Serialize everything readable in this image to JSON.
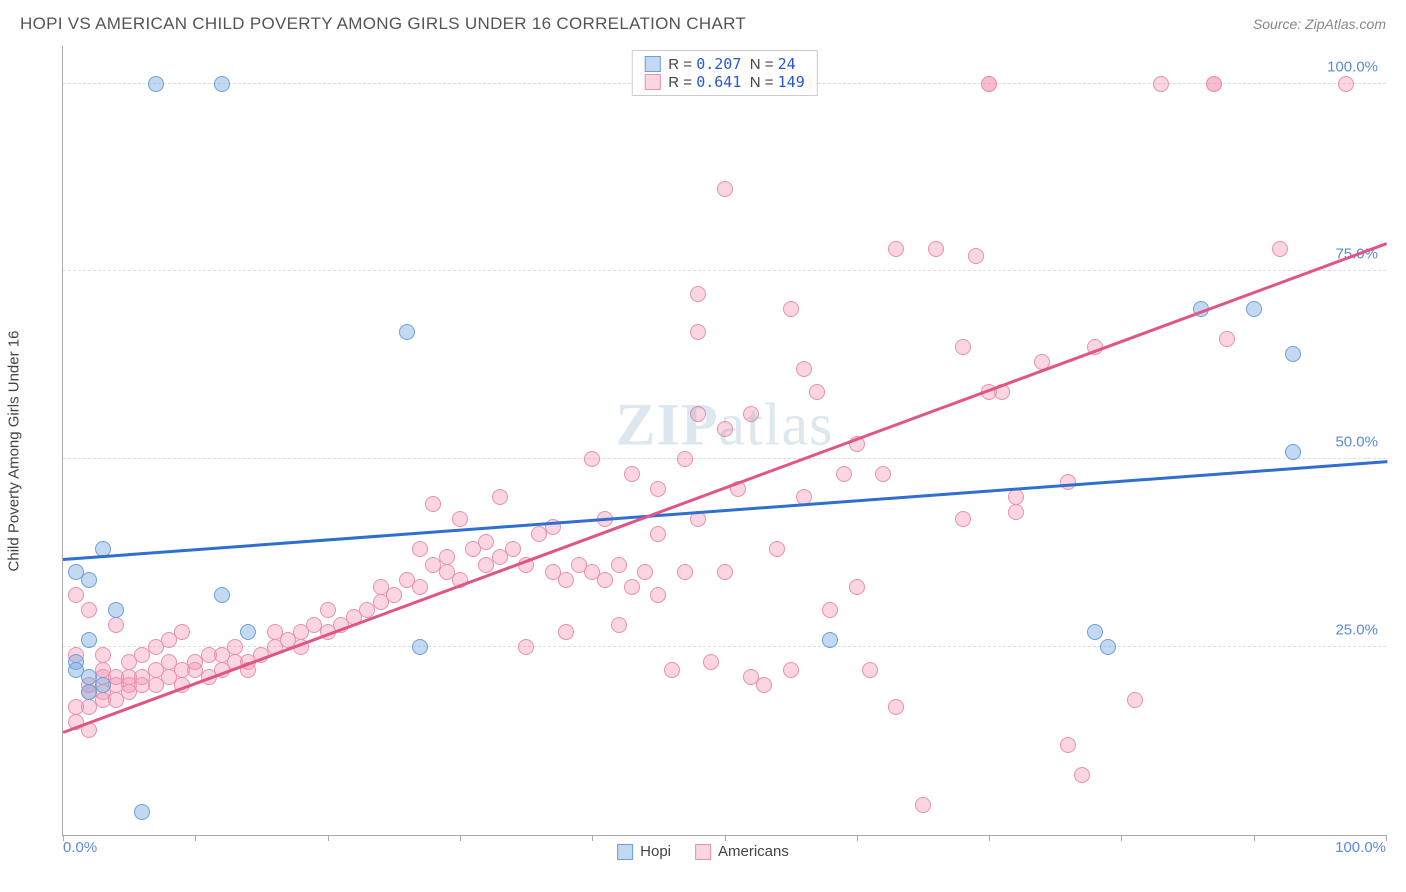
{
  "title": "HOPI VS AMERICAN CHILD POVERTY AMONG GIRLS UNDER 16 CORRELATION CHART",
  "source": "Source: ZipAtlas.com",
  "ylabel": "Child Poverty Among Girls Under 16",
  "watermark": {
    "bold": "ZIP",
    "rest": "atlas"
  },
  "colors": {
    "hopi_fill": "rgba(120,170,225,0.45)",
    "hopi_stroke": "#6aa0d8",
    "hopi_line": "#2e6fd0",
    "amer_fill": "rgba(245,150,180,0.40)",
    "amer_stroke": "#e890ad",
    "amer_line": "#e05585",
    "value_text": "#2558d6",
    "tick_blue": "#5a8bd8",
    "grid": "#dddddd",
    "axis": "#aaaaaa"
  },
  "axes": {
    "xlim": [
      0,
      100
    ],
    "ylim": [
      0,
      105
    ],
    "xticks_major": [
      0,
      10,
      20,
      30,
      40,
      50,
      60,
      70,
      80,
      90,
      100
    ],
    "xticks_labels": [
      {
        "pos": 0,
        "text": "0.0%"
      },
      {
        "pos": 100,
        "text": "100.0%"
      }
    ],
    "yticks": [
      {
        "pos": 25,
        "text": "25.0%"
      },
      {
        "pos": 50,
        "text": "50.0%"
      },
      {
        "pos": 75,
        "text": "75.0%"
      },
      {
        "pos": 100,
        "text": "100.0%"
      }
    ]
  },
  "legend_top": [
    {
      "swatch": "hopi",
      "r_label": "R =",
      "r": "0.207",
      "n_label": "N =",
      "n": "24"
    },
    {
      "swatch": "amer",
      "r_label": "R =",
      "r": "0.641",
      "n_label": "N =",
      "n": "149"
    }
  ],
  "legend_bottom": [
    {
      "swatch": "hopi",
      "label": "Hopi"
    },
    {
      "swatch": "amer",
      "label": "Americans"
    }
  ],
  "trend_lines": {
    "hopi": {
      "x1": 0,
      "y1": 37,
      "x2": 100,
      "y2": 50
    },
    "amer": {
      "x1": 0,
      "y1": 14,
      "x2": 100,
      "y2": 79
    }
  },
  "point_radius": 8,
  "series": {
    "hopi": [
      [
        7,
        100
      ],
      [
        12,
        100
      ],
      [
        1,
        35
      ],
      [
        2,
        34
      ],
      [
        2,
        26
      ],
      [
        1,
        23
      ],
      [
        1,
        22
      ],
      [
        2,
        21
      ],
      [
        3,
        20
      ],
      [
        12,
        32
      ],
      [
        14,
        27
      ],
      [
        26,
        67
      ],
      [
        27,
        25
      ],
      [
        58,
        26
      ],
      [
        78,
        27
      ],
      [
        79,
        25
      ],
      [
        86,
        70
      ],
      [
        90,
        70
      ],
      [
        93,
        51
      ],
      [
        93,
        64
      ],
      [
        6,
        3
      ],
      [
        3,
        38
      ],
      [
        4,
        30
      ],
      [
        2,
        19
      ]
    ],
    "amer": [
      [
        56,
        100
      ],
      [
        70,
        100
      ],
      [
        70,
        100
      ],
      [
        83,
        100
      ],
      [
        87,
        100
      ],
      [
        87,
        100
      ],
      [
        97,
        100
      ],
      [
        50,
        86
      ],
      [
        48,
        72
      ],
      [
        48,
        67
      ],
      [
        55,
        70
      ],
      [
        56,
        62
      ],
      [
        57,
        59
      ],
      [
        63,
        78
      ],
      [
        66,
        78
      ],
      [
        68,
        42
      ],
      [
        68,
        65
      ],
      [
        69,
        77
      ],
      [
        70,
        59
      ],
      [
        71,
        59
      ],
      [
        72,
        43
      ],
      [
        72,
        45
      ],
      [
        74,
        63
      ],
      [
        76,
        47
      ],
      [
        78,
        65
      ],
      [
        88,
        66
      ],
      [
        92,
        78
      ],
      [
        1,
        32
      ],
      [
        1,
        24
      ],
      [
        2,
        20
      ],
      [
        2,
        19
      ],
      [
        2,
        17
      ],
      [
        3,
        21
      ],
      [
        3,
        19
      ],
      [
        3,
        18
      ],
      [
        3,
        22
      ],
      [
        4,
        20
      ],
      [
        4,
        18
      ],
      [
        4,
        21
      ],
      [
        5,
        20
      ],
      [
        5,
        21
      ],
      [
        5,
        19
      ],
      [
        6,
        20
      ],
      [
        6,
        21
      ],
      [
        7,
        22
      ],
      [
        7,
        20
      ],
      [
        8,
        21
      ],
      [
        8,
        23
      ],
      [
        9,
        22
      ],
      [
        9,
        20
      ],
      [
        10,
        22
      ],
      [
        10,
        23
      ],
      [
        11,
        21
      ],
      [
        11,
        24
      ],
      [
        12,
        22
      ],
      [
        12,
        24
      ],
      [
        13,
        23
      ],
      [
        13,
        25
      ],
      [
        14,
        23
      ],
      [
        14,
        22
      ],
      [
        15,
        24
      ],
      [
        16,
        25
      ],
      [
        16,
        27
      ],
      [
        17,
        26
      ],
      [
        18,
        25
      ],
      [
        18,
        27
      ],
      [
        19,
        28
      ],
      [
        20,
        27
      ],
      [
        20,
        30
      ],
      [
        21,
        28
      ],
      [
        22,
        29
      ],
      [
        23,
        30
      ],
      [
        24,
        31
      ],
      [
        24,
        33
      ],
      [
        25,
        32
      ],
      [
        26,
        34
      ],
      [
        27,
        33
      ],
      [
        28,
        36
      ],
      [
        29,
        35
      ],
      [
        29,
        37
      ],
      [
        30,
        34
      ],
      [
        31,
        38
      ],
      [
        32,
        36
      ],
      [
        32,
        39
      ],
      [
        33,
        37
      ],
      [
        34,
        38
      ],
      [
        35,
        36
      ],
      [
        36,
        40
      ],
      [
        37,
        35
      ],
      [
        37,
        41
      ],
      [
        38,
        34
      ],
      [
        39,
        36
      ],
      [
        40,
        35
      ],
      [
        41,
        42
      ],
      [
        41,
        34
      ],
      [
        42,
        36
      ],
      [
        43,
        48
      ],
      [
        43,
        33
      ],
      [
        44,
        35
      ],
      [
        45,
        46
      ],
      [
        46,
        22
      ],
      [
        47,
        35
      ],
      [
        47,
        50
      ],
      [
        48,
        42
      ],
      [
        49,
        23
      ],
      [
        50,
        35
      ],
      [
        51,
        46
      ],
      [
        52,
        21
      ],
      [
        53,
        20
      ],
      [
        54,
        38
      ],
      [
        55,
        22
      ],
      [
        56,
        45
      ],
      [
        58,
        30
      ],
      [
        60,
        33
      ],
      [
        61,
        22
      ],
      [
        62,
        48
      ],
      [
        63,
        17
      ],
      [
        65,
        4
      ],
      [
        81,
        18
      ],
      [
        76,
        12
      ],
      [
        77,
        8
      ],
      [
        35,
        25
      ],
      [
        38,
        27
      ],
      [
        42,
        28
      ],
      [
        45,
        32
      ],
      [
        2,
        30
      ],
      [
        4,
        28
      ],
      [
        1,
        15
      ],
      [
        1,
        17
      ],
      [
        2,
        14
      ],
      [
        50,
        54
      ],
      [
        52,
        56
      ],
      [
        48,
        56
      ],
      [
        40,
        50
      ],
      [
        33,
        45
      ],
      [
        30,
        42
      ],
      [
        28,
        44
      ],
      [
        27,
        38
      ],
      [
        59,
        48
      ],
      [
        60,
        52
      ],
      [
        45,
        40
      ],
      [
        3,
        24
      ],
      [
        5,
        23
      ],
      [
        6,
        24
      ],
      [
        7,
        25
      ],
      [
        8,
        26
      ],
      [
        9,
        27
      ]
    ]
  }
}
